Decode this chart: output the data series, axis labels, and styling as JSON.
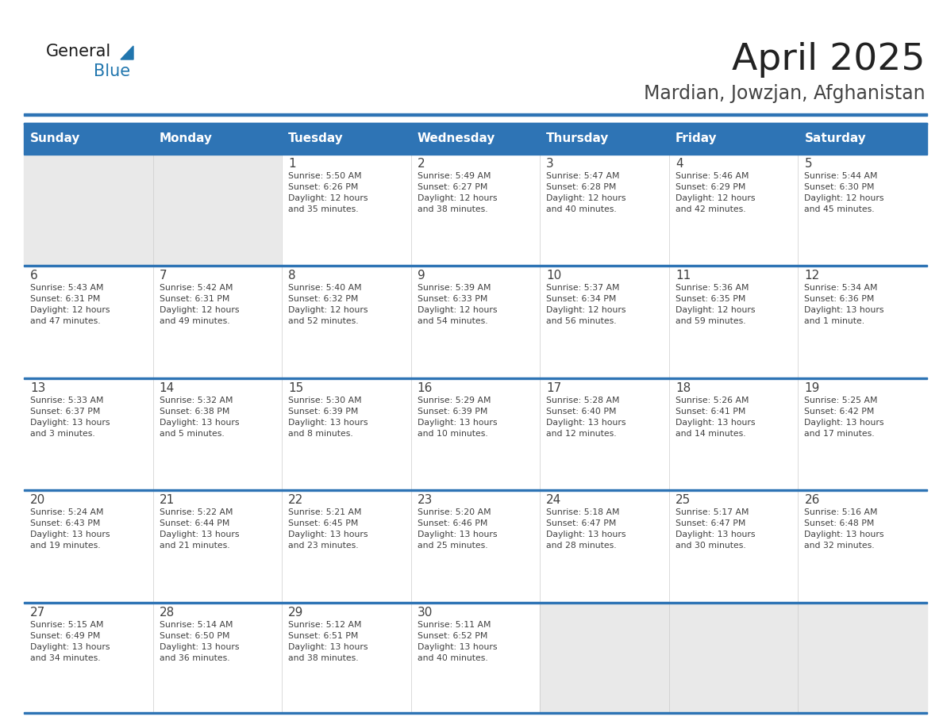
{
  "title": "April 2025",
  "subtitle": "Mardian, Jowzjan, Afghanistan",
  "days_of_week": [
    "Sunday",
    "Monday",
    "Tuesday",
    "Wednesday",
    "Thursday",
    "Friday",
    "Saturday"
  ],
  "header_bg": "#2E74B5",
  "header_text": "#FFFFFF",
  "cell_bg_white": "#FFFFFF",
  "cell_bg_gray": "#E9E9E9",
  "separator_color": "#2E74B5",
  "text_color": "#404040",
  "title_color": "#222222",
  "subtitle_color": "#444444",
  "logo_color_dark": "#1A1A1A",
  "logo_color_blue": "#2176AE",
  "calendar": [
    [
      {
        "day": "",
        "sunrise": "",
        "sunset": "",
        "daylight": ""
      },
      {
        "day": "",
        "sunrise": "",
        "sunset": "",
        "daylight": ""
      },
      {
        "day": "1",
        "sunrise": "Sunrise: 5:50 AM",
        "sunset": "Sunset: 6:26 PM",
        "daylight": "Daylight: 12 hours\nand 35 minutes."
      },
      {
        "day": "2",
        "sunrise": "Sunrise: 5:49 AM",
        "sunset": "Sunset: 6:27 PM",
        "daylight": "Daylight: 12 hours\nand 38 minutes."
      },
      {
        "day": "3",
        "sunrise": "Sunrise: 5:47 AM",
        "sunset": "Sunset: 6:28 PM",
        "daylight": "Daylight: 12 hours\nand 40 minutes."
      },
      {
        "day": "4",
        "sunrise": "Sunrise: 5:46 AM",
        "sunset": "Sunset: 6:29 PM",
        "daylight": "Daylight: 12 hours\nand 42 minutes."
      },
      {
        "day": "5",
        "sunrise": "Sunrise: 5:44 AM",
        "sunset": "Sunset: 6:30 PM",
        "daylight": "Daylight: 12 hours\nand 45 minutes."
      }
    ],
    [
      {
        "day": "6",
        "sunrise": "Sunrise: 5:43 AM",
        "sunset": "Sunset: 6:31 PM",
        "daylight": "Daylight: 12 hours\nand 47 minutes."
      },
      {
        "day": "7",
        "sunrise": "Sunrise: 5:42 AM",
        "sunset": "Sunset: 6:31 PM",
        "daylight": "Daylight: 12 hours\nand 49 minutes."
      },
      {
        "day": "8",
        "sunrise": "Sunrise: 5:40 AM",
        "sunset": "Sunset: 6:32 PM",
        "daylight": "Daylight: 12 hours\nand 52 minutes."
      },
      {
        "day": "9",
        "sunrise": "Sunrise: 5:39 AM",
        "sunset": "Sunset: 6:33 PM",
        "daylight": "Daylight: 12 hours\nand 54 minutes."
      },
      {
        "day": "10",
        "sunrise": "Sunrise: 5:37 AM",
        "sunset": "Sunset: 6:34 PM",
        "daylight": "Daylight: 12 hours\nand 56 minutes."
      },
      {
        "day": "11",
        "sunrise": "Sunrise: 5:36 AM",
        "sunset": "Sunset: 6:35 PM",
        "daylight": "Daylight: 12 hours\nand 59 minutes."
      },
      {
        "day": "12",
        "sunrise": "Sunrise: 5:34 AM",
        "sunset": "Sunset: 6:36 PM",
        "daylight": "Daylight: 13 hours\nand 1 minute."
      }
    ],
    [
      {
        "day": "13",
        "sunrise": "Sunrise: 5:33 AM",
        "sunset": "Sunset: 6:37 PM",
        "daylight": "Daylight: 13 hours\nand 3 minutes."
      },
      {
        "day": "14",
        "sunrise": "Sunrise: 5:32 AM",
        "sunset": "Sunset: 6:38 PM",
        "daylight": "Daylight: 13 hours\nand 5 minutes."
      },
      {
        "day": "15",
        "sunrise": "Sunrise: 5:30 AM",
        "sunset": "Sunset: 6:39 PM",
        "daylight": "Daylight: 13 hours\nand 8 minutes."
      },
      {
        "day": "16",
        "sunrise": "Sunrise: 5:29 AM",
        "sunset": "Sunset: 6:39 PM",
        "daylight": "Daylight: 13 hours\nand 10 minutes."
      },
      {
        "day": "17",
        "sunrise": "Sunrise: 5:28 AM",
        "sunset": "Sunset: 6:40 PM",
        "daylight": "Daylight: 13 hours\nand 12 minutes."
      },
      {
        "day": "18",
        "sunrise": "Sunrise: 5:26 AM",
        "sunset": "Sunset: 6:41 PM",
        "daylight": "Daylight: 13 hours\nand 14 minutes."
      },
      {
        "day": "19",
        "sunrise": "Sunrise: 5:25 AM",
        "sunset": "Sunset: 6:42 PM",
        "daylight": "Daylight: 13 hours\nand 17 minutes."
      }
    ],
    [
      {
        "day": "20",
        "sunrise": "Sunrise: 5:24 AM",
        "sunset": "Sunset: 6:43 PM",
        "daylight": "Daylight: 13 hours\nand 19 minutes."
      },
      {
        "day": "21",
        "sunrise": "Sunrise: 5:22 AM",
        "sunset": "Sunset: 6:44 PM",
        "daylight": "Daylight: 13 hours\nand 21 minutes."
      },
      {
        "day": "22",
        "sunrise": "Sunrise: 5:21 AM",
        "sunset": "Sunset: 6:45 PM",
        "daylight": "Daylight: 13 hours\nand 23 minutes."
      },
      {
        "day": "23",
        "sunrise": "Sunrise: 5:20 AM",
        "sunset": "Sunset: 6:46 PM",
        "daylight": "Daylight: 13 hours\nand 25 minutes."
      },
      {
        "day": "24",
        "sunrise": "Sunrise: 5:18 AM",
        "sunset": "Sunset: 6:47 PM",
        "daylight": "Daylight: 13 hours\nand 28 minutes."
      },
      {
        "day": "25",
        "sunrise": "Sunrise: 5:17 AM",
        "sunset": "Sunset: 6:47 PM",
        "daylight": "Daylight: 13 hours\nand 30 minutes."
      },
      {
        "day": "26",
        "sunrise": "Sunrise: 5:16 AM",
        "sunset": "Sunset: 6:48 PM",
        "daylight": "Daylight: 13 hours\nand 32 minutes."
      }
    ],
    [
      {
        "day": "27",
        "sunrise": "Sunrise: 5:15 AM",
        "sunset": "Sunset: 6:49 PM",
        "daylight": "Daylight: 13 hours\nand 34 minutes."
      },
      {
        "day": "28",
        "sunrise": "Sunrise: 5:14 AM",
        "sunset": "Sunset: 6:50 PM",
        "daylight": "Daylight: 13 hours\nand 36 minutes."
      },
      {
        "day": "29",
        "sunrise": "Sunrise: 5:12 AM",
        "sunset": "Sunset: 6:51 PM",
        "daylight": "Daylight: 13 hours\nand 38 minutes."
      },
      {
        "day": "30",
        "sunrise": "Sunrise: 5:11 AM",
        "sunset": "Sunset: 6:52 PM",
        "daylight": "Daylight: 13 hours\nand 40 minutes."
      },
      {
        "day": "",
        "sunrise": "",
        "sunset": "",
        "daylight": ""
      },
      {
        "day": "",
        "sunrise": "",
        "sunset": "",
        "daylight": ""
      },
      {
        "day": "",
        "sunrise": "",
        "sunset": "",
        "daylight": ""
      }
    ]
  ]
}
